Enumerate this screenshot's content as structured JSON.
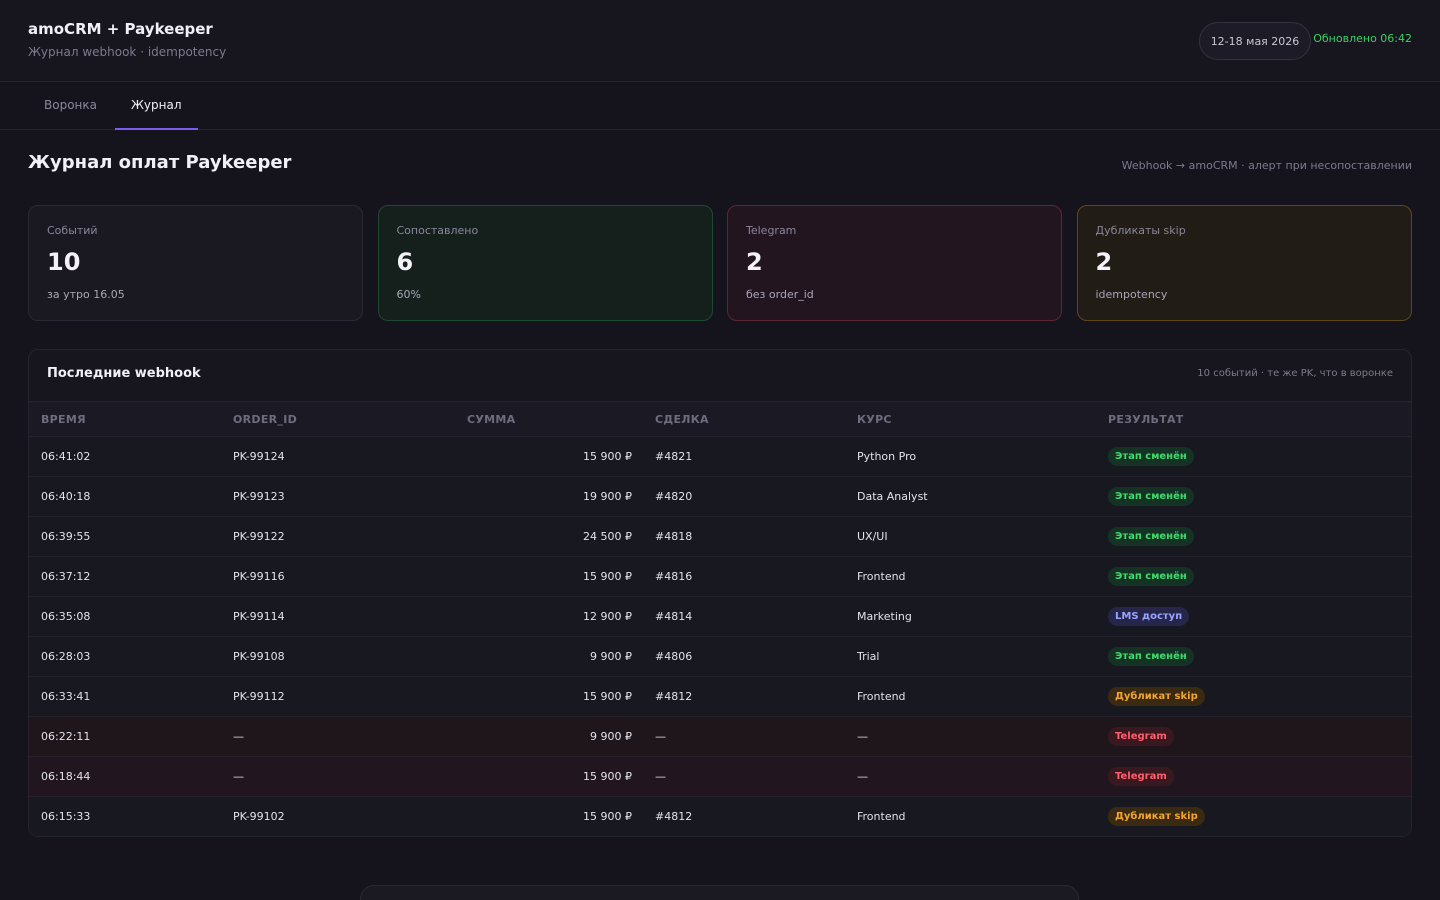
{
  "header": {
    "title": "amoCRM + Paykeeper",
    "subtitle": "Журнал webhook · idempotency",
    "date_range": "12-18 мая 2026",
    "updated": "Обновлено 06:42"
  },
  "tabs": [
    {
      "label": "Воронка",
      "active": false
    },
    {
      "label": "Журнал",
      "active": true
    }
  ],
  "page": {
    "title": "Журнал оплат Paykeeper",
    "note": "Webhook → amoCRM · алерт при несопоставлении"
  },
  "stats": [
    {
      "label": "Событий",
      "value": 10,
      "note": "за утро 16.05",
      "tone": "neutral"
    },
    {
      "label": "Сопоставлено",
      "value": 6,
      "note": "60%",
      "tone": "ok"
    },
    {
      "label": "Telegram",
      "value": 2,
      "note": "без order_id",
      "tone": "tg"
    },
    {
      "label": "Дубликаты skip",
      "value": 2,
      "note": "idempotency",
      "tone": "dup"
    }
  ],
  "table": {
    "title": "Последние webhook",
    "note": "10 событий · те же PK, что в воронке",
    "columns": [
      "ВРЕМЯ",
      "ORDER_ID",
      "СУММА",
      "СДЕЛКА",
      "КУРС",
      "РЕЗУЛЬТАТ"
    ],
    "rows": [
      {
        "time": "06:41:02",
        "order_id": "PK-99124",
        "amount": "15 900 ₽",
        "deal": "#4821",
        "course": "Python Pro",
        "result": "Этап сменён",
        "tone": "ok"
      },
      {
        "time": "06:40:18",
        "order_id": "PK-99123",
        "amount": "19 900 ₽",
        "deal": "#4820",
        "course": "Data Analyst",
        "result": "Этап сменён",
        "tone": "ok"
      },
      {
        "time": "06:39:55",
        "order_id": "PK-99122",
        "amount": "24 500 ₽",
        "deal": "#4818",
        "course": "UX/UI",
        "result": "Этап сменён",
        "tone": "ok"
      },
      {
        "time": "06:37:12",
        "order_id": "PK-99116",
        "amount": "15 900 ₽",
        "deal": "#4816",
        "course": "Frontend",
        "result": "Этап сменён",
        "tone": "ok"
      },
      {
        "time": "06:35:08",
        "order_id": "PK-99114",
        "amount": "12 900 ₽",
        "deal": "#4814",
        "course": "Marketing",
        "result": "LMS доступ",
        "tone": "lms"
      },
      {
        "time": "06:28:03",
        "order_id": "PK-99108",
        "amount": "9 900 ₽",
        "deal": "#4806",
        "course": "Trial",
        "result": "Этап сменён",
        "tone": "ok"
      },
      {
        "time": "06:33:41",
        "order_id": "PK-99112",
        "amount": "15 900 ₽",
        "deal": "#4812",
        "course": "Frontend",
        "result": "Дубликат skip",
        "tone": "dup"
      },
      {
        "time": "06:22:11",
        "order_id": "—",
        "amount": "9 900 ₽",
        "deal": "—",
        "course": "—",
        "result": "Telegram",
        "tone": "tg"
      },
      {
        "time": "06:18:44",
        "order_id": "—",
        "amount": "15 900 ₽",
        "deal": "—",
        "course": "—",
        "result": "Telegram",
        "tone": "tg"
      },
      {
        "time": "06:15:33",
        "order_id": "PK-99102",
        "amount": "15 900 ₽",
        "deal": "#4812",
        "course": "Frontend",
        "result": "Дубликат skip",
        "tone": "dup"
      }
    ]
  }
}
